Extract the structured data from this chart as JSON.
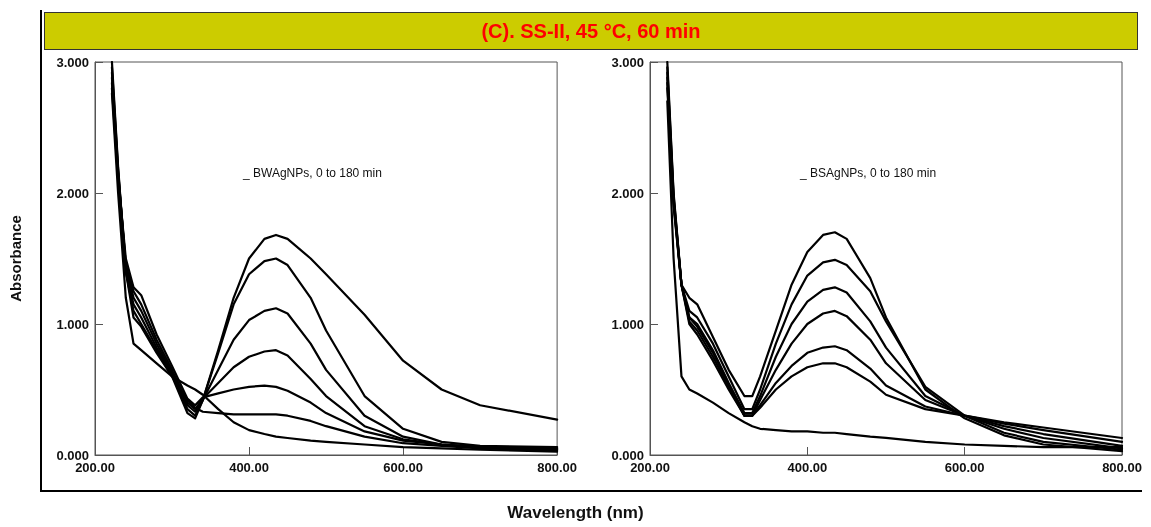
{
  "chart_data": [
    {
      "type": "line",
      "title": "(C). SS-II, 45 °C, 60 min",
      "ylabel": "Absorbance",
      "xlabel": "Wavelength (nm)",
      "annotations": [
        "_ BWAgNPs, 0 to 180 min"
      ],
      "marker": "none",
      "line_style": "solid",
      "grid": false,
      "xlim": [
        200,
        800
      ],
      "ylim": [
        0,
        3
      ],
      "xticks": [
        {
          "value": 200,
          "label": "200.00"
        },
        {
          "value": 400,
          "label": "400.00"
        },
        {
          "value": 600,
          "label": "600.00"
        },
        {
          "value": 800,
          "label": "800.00"
        }
      ],
      "yticks": [
        {
          "value": 0,
          "label": "0.000"
        },
        {
          "value": 1,
          "label": "1.000"
        },
        {
          "value": 2,
          "label": "2.000"
        },
        {
          "value": 3,
          "label": "3.000"
        }
      ],
      "x": [
        222,
        230,
        240,
        250,
        260,
        280,
        300,
        320,
        330,
        340,
        360,
        380,
        400,
        420,
        435,
        450,
        480,
        500,
        550,
        600,
        650,
        700,
        800
      ],
      "series": [
        {
          "color": "#000000",
          "values": [
            3.0,
            2.2,
            1.4,
            1.1,
            1.0,
            0.8,
            0.6,
            0.32,
            0.28,
            0.42,
            0.8,
            1.2,
            1.5,
            1.65,
            1.68,
            1.65,
            1.5,
            1.38,
            1.07,
            0.72,
            0.5,
            0.38,
            0.27
          ]
        },
        {
          "color": "#000000",
          "values": [
            2.96,
            2.18,
            1.4,
            1.15,
            1.05,
            0.82,
            0.62,
            0.35,
            0.3,
            0.42,
            0.78,
            1.15,
            1.38,
            1.48,
            1.5,
            1.45,
            1.2,
            0.95,
            0.45,
            0.2,
            0.1,
            0.07,
            0.06
          ]
        },
        {
          "color": "#000000",
          "values": [
            2.92,
            2.16,
            1.45,
            1.2,
            1.1,
            0.85,
            0.63,
            0.38,
            0.33,
            0.42,
            0.65,
            0.88,
            1.03,
            1.1,
            1.12,
            1.08,
            0.85,
            0.65,
            0.3,
            0.14,
            0.08,
            0.06,
            0.05
          ]
        },
        {
          "color": "#000000",
          "values": [
            2.88,
            2.14,
            1.45,
            1.25,
            1.15,
            0.88,
            0.65,
            0.4,
            0.35,
            0.43,
            0.55,
            0.67,
            0.75,
            0.79,
            0.8,
            0.76,
            0.58,
            0.45,
            0.22,
            0.12,
            0.08,
            0.06,
            0.045
          ]
        },
        {
          "color": "#000000",
          "values": [
            2.84,
            2.12,
            1.5,
            1.28,
            1.22,
            0.92,
            0.68,
            0.43,
            0.38,
            0.44,
            0.47,
            0.5,
            0.52,
            0.53,
            0.52,
            0.49,
            0.4,
            0.32,
            0.18,
            0.11,
            0.08,
            0.06,
            0.04
          ]
        },
        {
          "color": "#000000",
          "values": [
            2.8,
            2.1,
            1.4,
            1.05,
            0.98,
            0.78,
            0.6,
            0.42,
            0.36,
            0.33,
            0.32,
            0.31,
            0.31,
            0.31,
            0.31,
            0.3,
            0.26,
            0.22,
            0.14,
            0.09,
            0.07,
            0.05,
            0.035
          ]
        },
        {
          "color": "#000000",
          "values": [
            2.76,
            2.0,
            1.2,
            0.85,
            0.8,
            0.7,
            0.6,
            0.53,
            0.5,
            0.46,
            0.35,
            0.25,
            0.19,
            0.16,
            0.14,
            0.13,
            0.11,
            0.1,
            0.08,
            0.06,
            0.05,
            0.04,
            0.025
          ]
        }
      ]
    },
    {
      "type": "line",
      "annotations": [
        "_ BSAgNPs, 0 to 180 min"
      ],
      "marker": "none",
      "line_style": "solid",
      "grid": false,
      "xlim": [
        200,
        800
      ],
      "ylim": [
        0,
        3
      ],
      "xticks": [
        {
          "value": 200,
          "label": "200.00"
        },
        {
          "value": 400,
          "label": "400.00"
        },
        {
          "value": 600,
          "label": "600.00"
        },
        {
          "value": 800,
          "label": "800.00"
        }
      ],
      "yticks": [
        {
          "value": 0,
          "label": "0.000"
        },
        {
          "value": 1,
          "label": "1.000"
        },
        {
          "value": 2,
          "label": "2.000"
        },
        {
          "value": 3,
          "label": "3.000"
        }
      ],
      "x": [
        222,
        230,
        240,
        250,
        260,
        280,
        300,
        320,
        330,
        340,
        360,
        380,
        400,
        420,
        435,
        450,
        480,
        500,
        550,
        600,
        650,
        700,
        800
      ],
      "series": [
        {
          "color": "#000000",
          "values": [
            3.0,
            2.0,
            1.3,
            1.2,
            1.15,
            0.9,
            0.65,
            0.45,
            0.45,
            0.6,
            0.95,
            1.3,
            1.55,
            1.68,
            1.7,
            1.65,
            1.35,
            1.05,
            0.5,
            0.28,
            0.15,
            0.08,
            0.03
          ]
        },
        {
          "color": "#000000",
          "values": [
            2.96,
            1.98,
            1.3,
            1.1,
            1.05,
            0.85,
            0.6,
            0.35,
            0.35,
            0.5,
            0.85,
            1.15,
            1.37,
            1.47,
            1.49,
            1.45,
            1.25,
            1.02,
            0.52,
            0.3,
            0.17,
            0.1,
            0.04
          ]
        },
        {
          "color": "#000000",
          "values": [
            2.92,
            1.96,
            1.3,
            1.05,
            1.0,
            0.8,
            0.55,
            0.32,
            0.32,
            0.45,
            0.75,
            1.0,
            1.17,
            1.26,
            1.28,
            1.24,
            1.02,
            0.82,
            0.45,
            0.3,
            0.2,
            0.13,
            0.05
          ]
        },
        {
          "color": "#000000",
          "values": [
            2.88,
            1.94,
            1.3,
            1.05,
            0.98,
            0.78,
            0.54,
            0.3,
            0.3,
            0.42,
            0.65,
            0.85,
            1.0,
            1.08,
            1.1,
            1.06,
            0.88,
            0.7,
            0.42,
            0.3,
            0.22,
            0.16,
            0.07
          ]
        },
        {
          "color": "#000000",
          "values": [
            2.84,
            1.92,
            1.3,
            1.02,
            0.95,
            0.75,
            0.52,
            0.3,
            0.3,
            0.38,
            0.55,
            0.68,
            0.78,
            0.82,
            0.83,
            0.8,
            0.66,
            0.53,
            0.37,
            0.3,
            0.24,
            0.19,
            0.1
          ]
        },
        {
          "color": "#000000",
          "values": [
            2.8,
            1.9,
            1.3,
            1.0,
            0.92,
            0.72,
            0.5,
            0.3,
            0.3,
            0.36,
            0.5,
            0.6,
            0.67,
            0.7,
            0.7,
            0.67,
            0.56,
            0.46,
            0.35,
            0.3,
            0.25,
            0.21,
            0.13
          ]
        },
        {
          "color": "#000000",
          "values": [
            2.7,
            1.5,
            0.6,
            0.5,
            0.47,
            0.4,
            0.32,
            0.25,
            0.22,
            0.2,
            0.19,
            0.18,
            0.18,
            0.17,
            0.17,
            0.16,
            0.14,
            0.13,
            0.1,
            0.08,
            0.07,
            0.06,
            0.06
          ]
        }
      ]
    }
  ]
}
